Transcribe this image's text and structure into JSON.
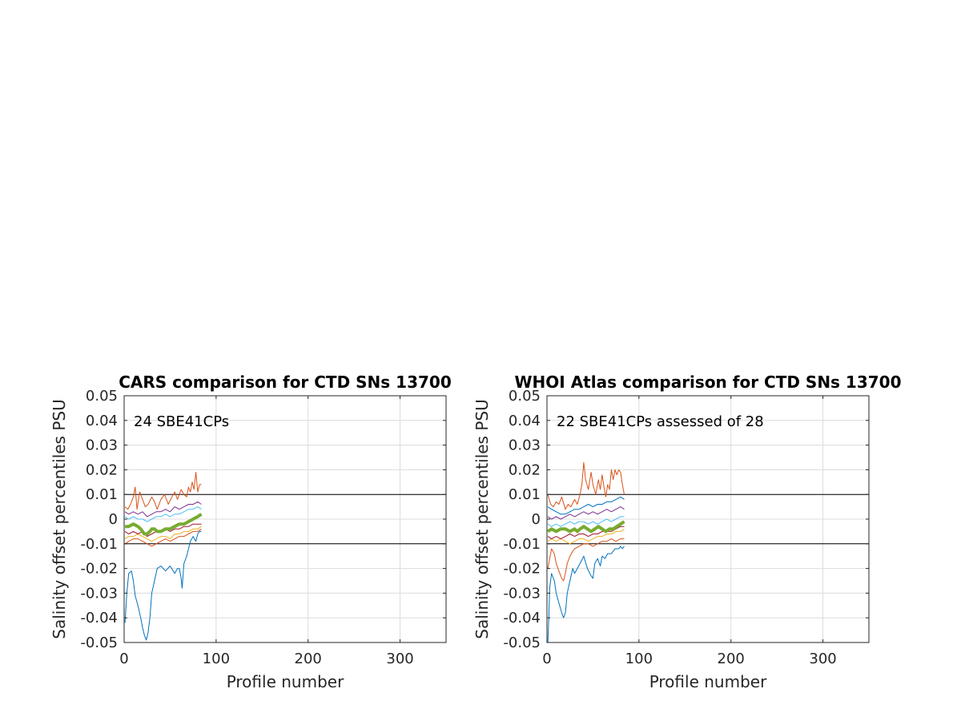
{
  "chart_data": [
    {
      "type": "line",
      "title": "CARS comparison for CTD SNs 13700",
      "xlabel": "Profile number",
      "ylabel": "Salinity offset percentiles PSU",
      "annotation": "24 SBE41CPs",
      "xlim": [
        0,
        350
      ],
      "ylim": [
        -0.05,
        0.05
      ],
      "xticks": [
        0,
        100,
        200,
        300
      ],
      "xtick_labels": [
        "0",
        "100",
        "200",
        "300"
      ],
      "yticks": [
        -0.05,
        -0.04,
        -0.03,
        -0.02,
        -0.01,
        0,
        0.01,
        0.02,
        0.03,
        0.04,
        0.05
      ],
      "ytick_labels": [
        "-0.05",
        "-0.04",
        "-0.03",
        "-0.02",
        "-0.01",
        "0",
        "0.01",
        "0.02",
        "0.03",
        "0.04",
        "0.05"
      ],
      "reference_lines": [
        0.01,
        -0.01
      ],
      "grid": true,
      "series": [
        {
          "color": "#0072BD",
          "width": 1,
          "x": [
            1,
            3,
            5,
            8,
            10,
            12,
            15,
            18,
            20,
            22,
            24,
            26,
            28,
            30,
            33,
            36,
            40,
            45,
            50,
            55,
            58,
            60,
            62,
            63,
            65,
            68,
            70,
            72,
            75,
            78,
            80,
            82,
            84
          ],
          "y": [
            -0.042,
            -0.03,
            -0.022,
            -0.021,
            -0.025,
            -0.031,
            -0.035,
            -0.04,
            -0.044,
            -0.047,
            -0.049,
            -0.046,
            -0.04,
            -0.03,
            -0.025,
            -0.02,
            -0.019,
            -0.021,
            -0.019,
            -0.022,
            -0.02,
            -0.02,
            -0.024,
            -0.028,
            -0.018,
            -0.015,
            -0.012,
            -0.009,
            -0.007,
            -0.009,
            -0.006,
            -0.005,
            -0.005
          ]
        },
        {
          "color": "#D95319",
          "width": 1,
          "x": [
            1,
            4,
            7,
            10,
            12,
            14,
            17,
            20,
            23,
            26,
            30,
            33,
            36,
            40,
            44,
            48,
            52,
            55,
            58,
            62,
            65,
            68,
            70,
            72,
            74,
            76,
            78,
            80,
            82,
            84
          ],
          "y": [
            0.005,
            0.004,
            0.006,
            0.009,
            0.013,
            0.004,
            0.011,
            0.008,
            0.005,
            0.006,
            0.009,
            0.007,
            0.004,
            0.008,
            0.01,
            0.006,
            0.009,
            0.011,
            0.008,
            0.012,
            0.01,
            0.009,
            0.013,
            0.011,
            0.015,
            0.012,
            0.019,
            0.011,
            0.014,
            0.014
          ]
        },
        {
          "color": "#D95319",
          "width": 1,
          "x": [
            1,
            5,
            10,
            15,
            20,
            25,
            30,
            35,
            40,
            45,
            50,
            55,
            60,
            65,
            70,
            75,
            80,
            84
          ],
          "y": [
            -0.01,
            -0.009,
            -0.008,
            -0.008,
            -0.009,
            -0.01,
            -0.011,
            -0.01,
            -0.009,
            -0.008,
            -0.009,
            -0.008,
            -0.007,
            -0.007,
            -0.006,
            -0.005,
            -0.005,
            -0.004
          ]
        },
        {
          "color": "#EDB120",
          "width": 1,
          "x": [
            1,
            5,
            10,
            15,
            20,
            25,
            30,
            35,
            40,
            45,
            50,
            55,
            60,
            65,
            70,
            75,
            80,
            84
          ],
          "y": [
            -0.008,
            -0.007,
            -0.007,
            -0.006,
            -0.007,
            -0.008,
            -0.009,
            -0.008,
            -0.007,
            -0.007,
            -0.008,
            -0.006,
            -0.006,
            -0.005,
            -0.005,
            -0.004,
            -0.004,
            -0.003
          ]
        },
        {
          "color": "#7E2F8E",
          "width": 1,
          "x": [
            1,
            5,
            10,
            15,
            20,
            25,
            30,
            35,
            40,
            45,
            50,
            55,
            60,
            65,
            70,
            75,
            80,
            84
          ],
          "y": [
            0.003,
            0.002,
            0.003,
            0.002,
            0.003,
            0.001,
            0.002,
            0.003,
            0.003,
            0.004,
            0.003,
            0.005,
            0.004,
            0.005,
            0.006,
            0.006,
            0.007,
            0.006
          ]
        },
        {
          "color": "#4DBEEE",
          "width": 1,
          "x": [
            1,
            5,
            10,
            15,
            20,
            25,
            30,
            35,
            40,
            45,
            50,
            55,
            60,
            65,
            70,
            75,
            80,
            84
          ],
          "y": [
            0.001,
            0.0,
            0.001,
            0.0,
            0.0,
            -0.001,
            0.0,
            0.001,
            0.001,
            0.002,
            0.001,
            0.002,
            0.002,
            0.003,
            0.004,
            0.004,
            0.005,
            0.004
          ]
        },
        {
          "color": "#A2142F",
          "width": 1,
          "x": [
            1,
            5,
            10,
            15,
            20,
            25,
            30,
            35,
            40,
            45,
            50,
            55,
            60,
            65,
            70,
            75,
            80,
            84
          ],
          "y": [
            -0.005,
            -0.006,
            -0.005,
            -0.006,
            -0.005,
            -0.007,
            -0.006,
            -0.005,
            -0.005,
            -0.004,
            -0.005,
            -0.004,
            -0.004,
            -0.003,
            -0.003,
            -0.002,
            -0.002,
            -0.002
          ]
        },
        {
          "color": "#77AC30",
          "width": 4,
          "x": [
            1,
            5,
            10,
            15,
            18,
            20,
            22,
            25,
            28,
            30,
            33,
            36,
            40,
            45,
            50,
            55,
            60,
            65,
            70,
            75,
            80,
            84
          ],
          "y": [
            -0.003,
            -0.003,
            -0.002,
            -0.003,
            -0.004,
            -0.005,
            -0.006,
            -0.006,
            -0.005,
            -0.004,
            -0.004,
            -0.005,
            -0.005,
            -0.004,
            -0.004,
            -0.003,
            -0.002,
            -0.002,
            -0.001,
            0.0,
            0.001,
            0.002
          ]
        }
      ]
    },
    {
      "type": "line",
      "title": "WHOI Atlas comparison for CTD SNs 13700",
      "xlabel": "Profile number",
      "ylabel": "Salinity offset percentiles PSU",
      "annotation": "22 SBE41CPs assessed of 28",
      "xlim": [
        0,
        350
      ],
      "ylim": [
        -0.05,
        0.05
      ],
      "xticks": [
        0,
        100,
        200,
        300
      ],
      "xtick_labels": [
        "0",
        "100",
        "200",
        "300"
      ],
      "yticks": [
        -0.05,
        -0.04,
        -0.03,
        -0.02,
        -0.01,
        0,
        0.01,
        0.02,
        0.03,
        0.04,
        0.05
      ],
      "ytick_labels": [
        "-0.05",
        "-0.04",
        "-0.03",
        "-0.02",
        "-0.01",
        "0",
        "0.01",
        "0.02",
        "0.03",
        "0.04",
        "0.05"
      ],
      "reference_lines": [
        0.01,
        -0.01
      ],
      "grid": true,
      "series": [
        {
          "color": "#0072BD",
          "width": 1,
          "x": [
            1,
            2,
            3,
            5,
            8,
            10,
            13,
            16,
            18,
            20,
            22,
            25,
            28,
            30,
            33,
            36,
            40,
            44,
            48,
            50,
            52,
            55,
            58,
            60,
            63,
            66,
            70,
            74,
            78,
            80,
            82,
            84
          ],
          "y": [
            -0.05,
            -0.04,
            -0.028,
            -0.022,
            -0.025,
            -0.03,
            -0.034,
            -0.038,
            -0.04,
            -0.038,
            -0.03,
            -0.025,
            -0.02,
            -0.022,
            -0.02,
            -0.018,
            -0.015,
            -0.02,
            -0.023,
            -0.024,
            -0.018,
            -0.016,
            -0.019,
            -0.015,
            -0.016,
            -0.014,
            -0.014,
            -0.012,
            -0.012,
            -0.011,
            -0.012,
            -0.011
          ]
        },
        {
          "color": "#D95319",
          "width": 1,
          "x": [
            1,
            4,
            7,
            10,
            13,
            16,
            20,
            23,
            26,
            30,
            33,
            36,
            38,
            40,
            42,
            45,
            48,
            50,
            53,
            56,
            58,
            60,
            62,
            64,
            66,
            68,
            70,
            72,
            74,
            76,
            78,
            80,
            82,
            84
          ],
          "y": [
            0.01,
            0.006,
            0.005,
            0.007,
            0.006,
            0.009,
            0.004,
            0.006,
            0.005,
            0.008,
            0.006,
            0.01,
            0.014,
            0.023,
            0.016,
            0.012,
            0.019,
            0.014,
            0.01,
            0.016,
            0.012,
            0.018,
            0.013,
            0.009,
            0.014,
            0.012,
            0.02,
            0.016,
            0.02,
            0.018,
            0.02,
            0.019,
            0.014,
            0.01
          ]
        },
        {
          "color": "#D95319",
          "width": 1,
          "x": [
            1,
            3,
            5,
            8,
            10,
            13,
            16,
            18,
            20,
            22,
            25,
            28,
            30,
            35,
            40,
            45,
            50,
            55,
            60,
            65,
            70,
            75,
            80,
            84
          ],
          "y": [
            -0.02,
            -0.016,
            -0.012,
            -0.014,
            -0.018,
            -0.021,
            -0.024,
            -0.025,
            -0.022,
            -0.018,
            -0.015,
            -0.013,
            -0.012,
            -0.011,
            -0.01,
            -0.01,
            -0.011,
            -0.01,
            -0.009,
            -0.009,
            -0.008,
            -0.009,
            -0.008,
            -0.008
          ]
        },
        {
          "color": "#EDB120",
          "width": 1,
          "x": [
            1,
            5,
            10,
            15,
            20,
            25,
            30,
            35,
            40,
            45,
            50,
            55,
            60,
            65,
            70,
            75,
            80,
            84
          ],
          "y": [
            -0.009,
            -0.008,
            -0.009,
            -0.008,
            -0.009,
            -0.01,
            -0.009,
            -0.008,
            -0.008,
            -0.009,
            -0.008,
            -0.007,
            -0.007,
            -0.006,
            -0.006,
            -0.005,
            -0.005,
            -0.004
          ]
        },
        {
          "color": "#7E2F8E",
          "width": 1,
          "x": [
            1,
            5,
            10,
            15,
            20,
            25,
            30,
            35,
            40,
            45,
            50,
            55,
            60,
            65,
            70,
            75,
            80,
            84
          ],
          "y": [
            0.001,
            0.0,
            0.001,
            0.0,
            0.001,
            0.002,
            0.001,
            0.002,
            0.003,
            0.002,
            0.003,
            0.002,
            0.003,
            0.004,
            0.003,
            0.004,
            0.005,
            0.004
          ]
        },
        {
          "color": "#4DBEEE",
          "width": 1,
          "x": [
            1,
            5,
            10,
            15,
            20,
            25,
            30,
            35,
            40,
            45,
            50,
            55,
            60,
            65,
            70,
            75,
            80,
            84
          ],
          "y": [
            -0.002,
            -0.003,
            -0.002,
            -0.003,
            -0.002,
            -0.001,
            -0.002,
            -0.001,
            -0.001,
            -0.002,
            -0.001,
            -0.002,
            -0.001,
            0.0,
            -0.001,
            0.0,
            0.001,
            0.001
          ]
        },
        {
          "color": "#A2142F",
          "width": 1,
          "x": [
            1,
            5,
            10,
            15,
            20,
            25,
            30,
            35,
            40,
            45,
            50,
            55,
            60,
            65,
            70,
            75,
            80,
            84
          ],
          "y": [
            -0.007,
            -0.008,
            -0.007,
            -0.008,
            -0.007,
            -0.006,
            -0.007,
            -0.006,
            -0.006,
            -0.007,
            -0.006,
            -0.006,
            -0.005,
            -0.005,
            -0.005,
            -0.004,
            -0.003,
            -0.003
          ]
        },
        {
          "color": "#0072BD",
          "width": 1,
          "x": [
            1,
            5,
            10,
            15,
            20,
            25,
            30,
            35,
            40,
            45,
            50,
            55,
            60,
            65,
            70,
            75,
            80,
            84
          ],
          "y": [
            0.005,
            0.004,
            0.003,
            0.002,
            0.002,
            0.003,
            0.004,
            0.004,
            0.005,
            0.006,
            0.005,
            0.006,
            0.006,
            0.007,
            0.007,
            0.008,
            0.009,
            0.008
          ]
        },
        {
          "color": "#77AC30",
          "width": 4,
          "x": [
            1,
            5,
            10,
            15,
            20,
            25,
            30,
            33,
            36,
            40,
            44,
            48,
            52,
            56,
            60,
            64,
            68,
            72,
            76,
            80,
            84
          ],
          "y": [
            -0.005,
            -0.004,
            -0.005,
            -0.004,
            -0.004,
            -0.005,
            -0.004,
            -0.005,
            -0.004,
            -0.003,
            -0.004,
            -0.005,
            -0.004,
            -0.003,
            -0.004,
            -0.005,
            -0.004,
            -0.004,
            -0.003,
            -0.002,
            -0.001
          ]
        }
      ]
    }
  ]
}
